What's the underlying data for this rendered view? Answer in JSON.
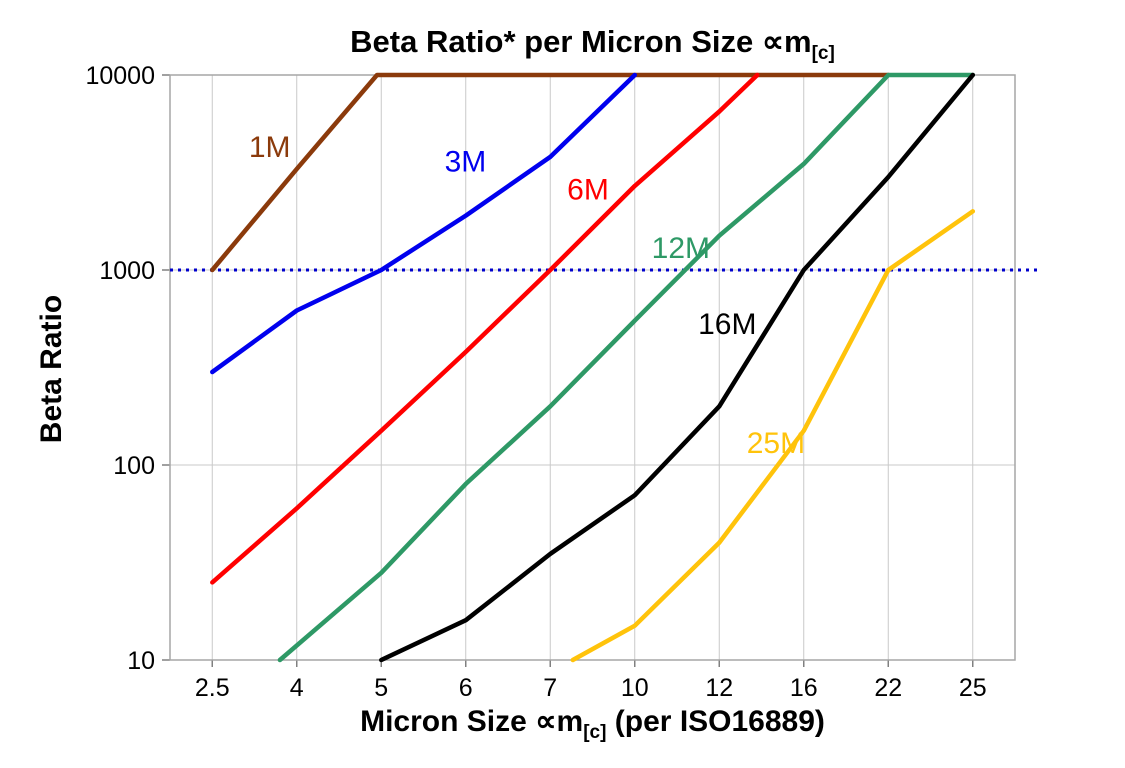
{
  "chart_data": {
    "type": "line",
    "title_main": "Beta Ratio* per Micron Size ∝m",
    "title_sub": "[c]",
    "x_axis": {
      "label_main": "Micron Size ∝m",
      "label_sub": "[c]",
      "label_suffix": " (per ISO16889)",
      "categories": [
        2.5,
        4,
        5,
        6,
        7,
        10,
        12,
        16,
        22,
        25
      ]
    },
    "y_axis": {
      "label": "Beta Ratio",
      "scale": "log",
      "min": 10,
      "max": 10000,
      "ticks": [
        10000,
        1000,
        100,
        10
      ]
    },
    "reference_line": {
      "y": 1000,
      "color": "#0000CC",
      "style": "dotted"
    },
    "grid": {
      "color": "#C9C9C9",
      "border_color": "#A6A6A6",
      "tick_color": "#808080"
    },
    "series": [
      {
        "name": "1M",
        "color": "#8B3A0B",
        "points": [
          [
            2.5,
            1000
          ],
          [
            4,
            3300
          ],
          [
            4.95,
            10000
          ],
          [
            22,
            10000
          ]
        ],
        "label": {
          "text": "1M",
          "x": 3.15,
          "y": 3800
        }
      },
      {
        "name": "3M",
        "color": "#0000EE",
        "points": [
          [
            2.5,
            300
          ],
          [
            4,
            620
          ],
          [
            5,
            1000
          ],
          [
            6,
            1900
          ],
          [
            7,
            3800
          ],
          [
            10,
            10000
          ]
        ],
        "label": {
          "text": "3M",
          "x": 5.75,
          "y": 3200
        }
      },
      {
        "name": "6M",
        "color": "#FF0000",
        "points": [
          [
            2.5,
            25
          ],
          [
            4,
            60
          ],
          [
            5,
            150
          ],
          [
            6,
            380
          ],
          [
            7,
            1000
          ],
          [
            10,
            2700
          ],
          [
            12,
            6500
          ],
          [
            13.8,
            10000
          ]
        ],
        "label": {
          "text": "6M",
          "x": 7.6,
          "y": 2300
        }
      },
      {
        "name": "12M",
        "color": "#2E9966",
        "points": [
          [
            3.7,
            10
          ],
          [
            5,
            28
          ],
          [
            6,
            80
          ],
          [
            7,
            200
          ],
          [
            10,
            550
          ],
          [
            12,
            1500
          ],
          [
            16,
            3500
          ],
          [
            22,
            10000
          ],
          [
            25,
            10000
          ]
        ],
        "label": {
          "text": "12M",
          "x": 10.4,
          "y": 1150
        }
      },
      {
        "name": "16M",
        "color": "#000000",
        "points": [
          [
            5,
            10
          ],
          [
            6,
            16
          ],
          [
            7,
            35
          ],
          [
            10,
            70
          ],
          [
            12,
            200
          ],
          [
            16,
            1000
          ],
          [
            22,
            3000
          ],
          [
            25,
            10000
          ]
        ],
        "label": {
          "text": "16M",
          "x": 11.5,
          "y": 470
        }
      },
      {
        "name": "25M",
        "color": "#FFC30B",
        "points": [
          [
            7.8,
            10
          ],
          [
            10,
            15
          ],
          [
            12,
            40
          ],
          [
            16,
            150
          ],
          [
            22,
            1000
          ],
          [
            25,
            2000
          ]
        ],
        "label": {
          "text": "25M",
          "x": 13.3,
          "y": 115
        }
      }
    ]
  }
}
